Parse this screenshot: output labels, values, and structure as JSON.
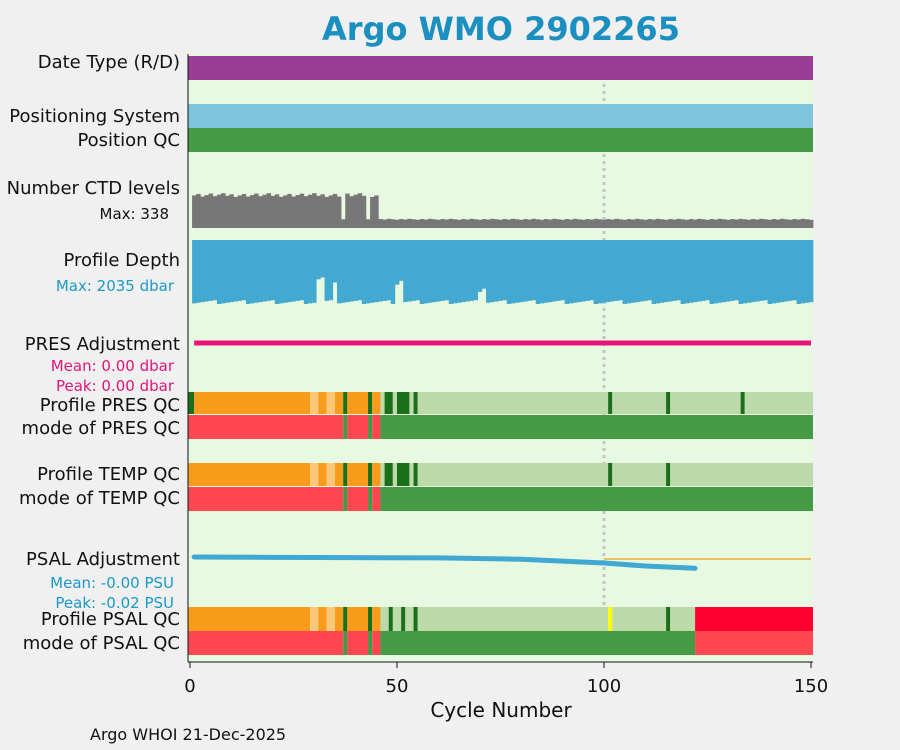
{
  "title": "Argo WMO 2902265",
  "footer": "Argo WHOI 21-Dec-2025",
  "labels": {
    "date_type": "Date Type (R/D)",
    "positioning_system": "Positioning System",
    "position_qc": "Position QC",
    "ctd_levels": "Number CTD levels",
    "ctd_max": "Max: 338",
    "profile_depth": "Profile Depth",
    "depth_max": "Max: 2035 dbar",
    "pres_adj": "PRES Adjustment",
    "pres_mean": "Mean: 0.00 dbar",
    "pres_peak": "Peak: 0.00 dbar",
    "profile_pres_qc": "Profile PRES QC",
    "mode_pres_qc": "mode of PRES QC",
    "profile_temp_qc": "Profile TEMP QC",
    "mode_temp_qc": "mode of TEMP QC",
    "psal_adj": "PSAL Adjustment",
    "psal_mean": "Mean: -0.00 PSU",
    "psal_peak": "Peak: -0.02 PSU",
    "profile_psal_qc": "Profile PSAL QC",
    "mode_psal_qc": "mode of PSAL QC"
  },
  "chart_data": {
    "type": "bar",
    "title": "Argo WMO 2902265",
    "xlabel": "Cycle Number",
    "xlim": [
      0,
      150
    ],
    "xticks": [
      "0",
      "50",
      "100",
      "150"
    ],
    "reference_line_cycle": 100,
    "colors": {
      "date_type": "#9b3d97",
      "positioning": "#7ec4de",
      "qc_good": "#469a46",
      "ctd": "#777777",
      "depth": "#44a9d0",
      "pres_adj": "#e8137a",
      "psal_adj": "#41a7d3",
      "psal_ref": "#f0a93c",
      "profile_A": "#1a6f1a",
      "profile_light": "#bddaaa",
      "profile_C": "#f99c1c",
      "profile_Cpale": "#fbc87a",
      "profile_F": "#ff0030",
      "profile_yellow": "#ffff00",
      "mode_bad": "#ff4752",
      "panel_bg": "#e7f9e0"
    },
    "ctd_levels_max": 338,
    "ctd_levels": {
      "early_cycles": [
        1,
        45
      ],
      "early_typical": 260,
      "late_typical": 70,
      "gaps_at": [
        37,
        43
      ]
    },
    "profile_depth_max_dbar": 2035,
    "profile_depth_dips": [
      {
        "cycle": 31,
        "depth": 1250
      },
      {
        "cycle": 32,
        "depth": 1190
      },
      {
        "cycle": 35,
        "depth": 1350
      },
      {
        "cycle": 50,
        "depth": 1420
      },
      {
        "cycle": 51,
        "depth": 1300
      },
      {
        "cycle": 70,
        "depth": 1650
      },
      {
        "cycle": 71,
        "depth": 1550
      }
    ],
    "pres_adjustment": {
      "mean_dbar": 0.0,
      "peak_dbar": 0.0,
      "cycles": [
        1,
        150
      ]
    },
    "psal_adjustment": {
      "mean_psu": -0.0,
      "peak_psu": -0.02,
      "x": [
        1,
        20,
        40,
        60,
        80,
        100,
        110,
        122
      ],
      "y": [
        0.0,
        -0.0005,
        -0.0008,
        -0.0012,
        -0.003,
        -0.008,
        -0.012,
        -0.015
      ]
    },
    "profile_pres_qc": [
      {
        "from": 0,
        "to": 1,
        "flag": "A"
      },
      {
        "from": 1,
        "to": 29,
        "flag": "C"
      },
      {
        "from": 29,
        "to": 31,
        "flag": "Cpale"
      },
      {
        "from": 31,
        "to": 33,
        "flag": "C"
      },
      {
        "from": 33,
        "to": 35,
        "flag": "Cpale"
      },
      {
        "from": 35,
        "to": 37,
        "flag": "C"
      },
      {
        "from": 37,
        "to": 38,
        "flag": "A"
      },
      {
        "from": 38,
        "to": 43,
        "flag": "C"
      },
      {
        "from": 43,
        "to": 44,
        "flag": "A"
      },
      {
        "from": 44,
        "to": 46,
        "flag": "C"
      },
      {
        "from": 46,
        "to": 47,
        "flag": "light"
      },
      {
        "from": 47,
        "to": 49,
        "flag": "A"
      },
      {
        "from": 49,
        "to": 50,
        "flag": "light"
      },
      {
        "from": 50,
        "to": 53,
        "flag": "A"
      },
      {
        "from": 53,
        "to": 54,
        "flag": "light"
      },
      {
        "from": 54,
        "to": 55,
        "flag": "A"
      },
      {
        "from": 55,
        "to": 101,
        "flag": "light"
      },
      {
        "from": 101,
        "to": 102,
        "flag": "A"
      },
      {
        "from": 102,
        "to": 115,
        "flag": "light"
      },
      {
        "from": 115,
        "to": 116,
        "flag": "A"
      },
      {
        "from": 116,
        "to": 133,
        "flag": "light"
      },
      {
        "from": 133,
        "to": 134,
        "flag": "A"
      },
      {
        "from": 134,
        "to": 150,
        "flag": "light"
      }
    ],
    "profile_temp_qc": [
      {
        "from": 0,
        "to": 29,
        "flag": "C"
      },
      {
        "from": 29,
        "to": 31,
        "flag": "Cpale"
      },
      {
        "from": 31,
        "to": 33,
        "flag": "C"
      },
      {
        "from": 33,
        "to": 35,
        "flag": "Cpale"
      },
      {
        "from": 35,
        "to": 37,
        "flag": "C"
      },
      {
        "from": 37,
        "to": 38,
        "flag": "A"
      },
      {
        "from": 38,
        "to": 43,
        "flag": "C"
      },
      {
        "from": 43,
        "to": 44,
        "flag": "A"
      },
      {
        "from": 44,
        "to": 46,
        "flag": "C"
      },
      {
        "from": 46,
        "to": 47,
        "flag": "light"
      },
      {
        "from": 47,
        "to": 49,
        "flag": "A"
      },
      {
        "from": 49,
        "to": 50,
        "flag": "light"
      },
      {
        "from": 50,
        "to": 53,
        "flag": "A"
      },
      {
        "from": 53,
        "to": 54,
        "flag": "light"
      },
      {
        "from": 54,
        "to": 55,
        "flag": "A"
      },
      {
        "from": 55,
        "to": 101,
        "flag": "light"
      },
      {
        "from": 101,
        "to": 102,
        "flag": "A"
      },
      {
        "from": 102,
        "to": 115,
        "flag": "light"
      },
      {
        "from": 115,
        "to": 116,
        "flag": "A"
      },
      {
        "from": 116,
        "to": 150,
        "flag": "light"
      }
    ],
    "profile_psal_qc": [
      {
        "from": 0,
        "to": 29,
        "flag": "C"
      },
      {
        "from": 29,
        "to": 31,
        "flag": "Cpale"
      },
      {
        "from": 31,
        "to": 33,
        "flag": "C"
      },
      {
        "from": 33,
        "to": 35,
        "flag": "Cpale"
      },
      {
        "from": 35,
        "to": 37,
        "flag": "C"
      },
      {
        "from": 37,
        "to": 38,
        "flag": "A"
      },
      {
        "from": 38,
        "to": 43,
        "flag": "C"
      },
      {
        "from": 43,
        "to": 44,
        "flag": "A"
      },
      {
        "from": 44,
        "to": 46,
        "flag": "C"
      },
      {
        "from": 46,
        "to": 48,
        "flag": "light"
      },
      {
        "from": 48,
        "to": 49,
        "flag": "A"
      },
      {
        "from": 49,
        "to": 51,
        "flag": "light"
      },
      {
        "from": 51,
        "to": 52,
        "flag": "A"
      },
      {
        "from": 52,
        "to": 54,
        "flag": "light"
      },
      {
        "from": 54,
        "to": 55,
        "flag": "A"
      },
      {
        "from": 55,
        "to": 101,
        "flag": "light"
      },
      {
        "from": 101,
        "to": 102,
        "flag": "yellow"
      },
      {
        "from": 102,
        "to": 115,
        "flag": "light"
      },
      {
        "from": 115,
        "to": 116,
        "flag": "A"
      },
      {
        "from": 116,
        "to": 122,
        "flag": "light"
      },
      {
        "from": 122,
        "to": 150,
        "flag": "F"
      }
    ],
    "mode_pres_qc": [
      {
        "from": 0,
        "to": 37,
        "flag": "bad"
      },
      {
        "from": 37,
        "to": 38,
        "flag": "good"
      },
      {
        "from": 38,
        "to": 43,
        "flag": "bad"
      },
      {
        "from": 43,
        "to": 44,
        "flag": "good"
      },
      {
        "from": 44,
        "to": 46,
        "flag": "bad"
      },
      {
        "from": 46,
        "to": 150,
        "flag": "good"
      }
    ],
    "mode_temp_qc": [
      {
        "from": 0,
        "to": 37,
        "flag": "bad"
      },
      {
        "from": 37,
        "to": 38,
        "flag": "good"
      },
      {
        "from": 38,
        "to": 43,
        "flag": "bad"
      },
      {
        "from": 43,
        "to": 44,
        "flag": "good"
      },
      {
        "from": 44,
        "to": 46,
        "flag": "bad"
      },
      {
        "from": 46,
        "to": 150,
        "flag": "good"
      }
    ],
    "mode_psal_qc": [
      {
        "from": 0,
        "to": 37,
        "flag": "bad"
      },
      {
        "from": 37,
        "to": 38,
        "flag": "good"
      },
      {
        "from": 38,
        "to": 43,
        "flag": "bad"
      },
      {
        "from": 43,
        "to": 44,
        "flag": "good"
      },
      {
        "from": 44,
        "to": 46,
        "flag": "bad"
      },
      {
        "from": 46,
        "to": 122,
        "flag": "good"
      },
      {
        "from": 122,
        "to": 150,
        "flag": "bad"
      }
    ]
  }
}
